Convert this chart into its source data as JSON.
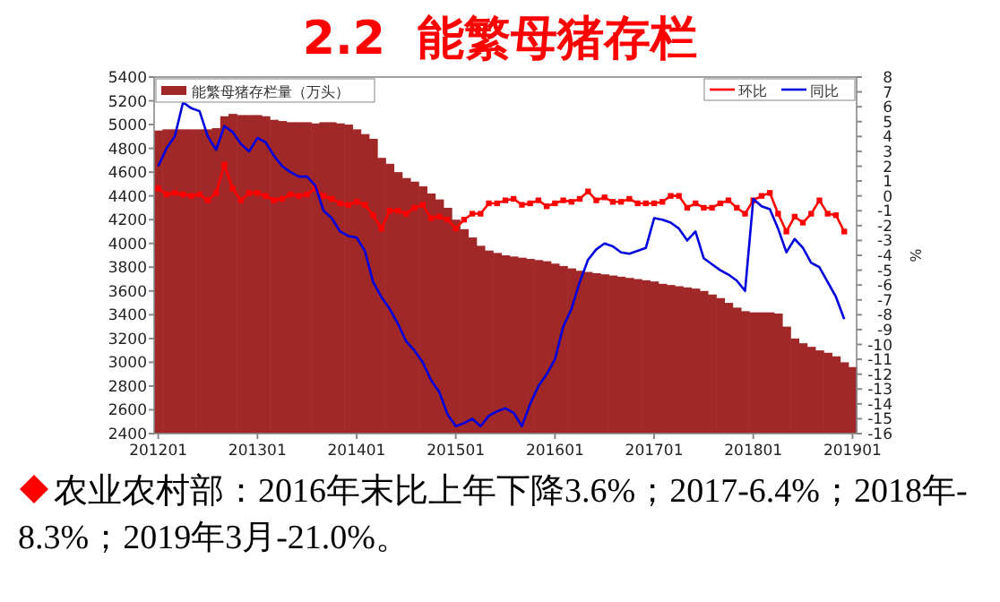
{
  "chart_data": {
    "type": "bar",
    "title": "2.2  能繁母猪存栏",
    "y2label": "%",
    "categories": [
      "201201",
      null,
      null,
      null,
      null,
      null,
      null,
      null,
      null,
      null,
      null,
      null,
      "201301",
      null,
      null,
      null,
      null,
      null,
      null,
      null,
      null,
      null,
      null,
      null,
      "201401",
      null,
      null,
      null,
      null,
      null,
      null,
      null,
      null,
      null,
      null,
      null,
      "201501",
      null,
      null,
      null,
      null,
      null,
      null,
      null,
      null,
      null,
      null,
      null,
      "201601",
      null,
      null,
      null,
      null,
      null,
      null,
      null,
      null,
      null,
      null,
      null,
      "201701",
      null,
      null,
      null,
      null,
      null,
      null,
      null,
      null,
      null,
      null,
      null,
      "201801",
      null,
      null,
      null,
      null,
      null,
      null,
      null,
      null,
      null,
      null,
      null,
      "201901"
    ],
    "series": [
      {
        "name": "能繁母猪存栏量（万头）",
        "color": "#a02828",
        "values": [
          4950,
          4960,
          4960,
          4960,
          4960,
          4960,
          4960,
          4970,
          5070,
          5090,
          5080,
          5080,
          5080,
          5070,
          5040,
          5030,
          5020,
          5020,
          5020,
          5010,
          5020,
          5020,
          5010,
          5000,
          4960,
          4920,
          4880,
          4720,
          4670,
          4600,
          4550,
          4520,
          4480,
          4420,
          4370,
          4300,
          4200,
          4120,
          4050,
          3980,
          3940,
          3920,
          3900,
          3890,
          3880,
          3870,
          3860,
          3850,
          3830,
          3810,
          3790,
          3770,
          3760,
          3750,
          3740,
          3730,
          3720,
          3710,
          3700,
          3690,
          3680,
          3660,
          3650,
          3640,
          3630,
          3620,
          3600,
          3570,
          3540,
          3500,
          3460,
          3430,
          3420,
          3420,
          3420,
          3410,
          3300,
          3200,
          3160,
          3130,
          3100,
          3080,
          3050,
          3000,
          2960
        ]
      },
      {
        "name": "环比",
        "type": "line",
        "axis": "y2",
        "color": "#ff0000",
        "marker": "square",
        "values": [
          0.5,
          0.1,
          0.2,
          0.1,
          0.0,
          0.1,
          -0.3,
          0.2,
          2.1,
          0.5,
          -0.3,
          0.2,
          0.2,
          0.0,
          -0.3,
          -0.2,
          0.1,
          0.0,
          0.1,
          0.5,
          0.0,
          -0.2,
          -0.5,
          -0.6,
          -0.4,
          -0.6,
          -1.3,
          -2.2,
          -1.0,
          -1.0,
          -1.2,
          -0.8,
          -0.6,
          -1.5,
          -1.4,
          -1.6,
          -2.2,
          -1.6,
          -1.2,
          -1.2,
          -0.5,
          -0.5,
          -0.3,
          -0.2,
          -0.6,
          -0.5,
          -0.3,
          -0.7,
          -0.5,
          -0.3,
          -0.4,
          -0.2,
          0.3,
          -0.3,
          -0.1,
          -0.4,
          -0.4,
          -0.2,
          -0.5,
          -0.5,
          -0.5,
          -0.4,
          0.0,
          0.0,
          -0.8,
          -0.5,
          -0.8,
          -0.8,
          -0.5,
          -0.3,
          -0.8,
          -1.2,
          -0.3,
          0.0,
          0.2,
          -1.2,
          -2.4,
          -1.4,
          -1.8,
          -1.2,
          -0.3,
          -1.2,
          -1.3,
          -2.4,
          null
        ]
      },
      {
        "name": "同比",
        "type": "line",
        "axis": "y2",
        "color": "#0000dd",
        "marker": "none",
        "values": [
          2.0,
          3.2,
          4.0,
          6.3,
          5.9,
          5.7,
          4.0,
          3.1,
          4.7,
          4.3,
          3.5,
          3.0,
          3.9,
          3.6,
          2.7,
          2.0,
          1.6,
          1.3,
          1.3,
          0.7,
          -1.0,
          -1.5,
          -2.4,
          -2.7,
          -2.8,
          -3.7,
          -5.8,
          -6.8,
          -7.6,
          -8.6,
          -9.8,
          -10.4,
          -11.2,
          -12.4,
          -13.2,
          -14.7,
          -15.5,
          -15.3,
          -15.0,
          -15.5,
          -14.8,
          -14.5,
          -14.3,
          -14.6,
          -15.5,
          -14.0,
          -12.8,
          -12.0,
          -11.0,
          -8.8,
          -7.6,
          -5.8,
          -4.3,
          -3.6,
          -3.2,
          -3.4,
          -3.8,
          -3.9,
          -3.7,
          -3.5,
          -1.5,
          -1.6,
          -1.8,
          -2.2,
          -3.0,
          -2.4,
          -4.2,
          -4.6,
          -5.0,
          -5.3,
          -5.7,
          -6.4,
          -0.2,
          -0.7,
          -0.9,
          -2.2,
          -3.8,
          -2.9,
          -3.5,
          -4.5,
          -4.8,
          -5.8,
          -6.8,
          -8.3,
          null
        ]
      }
    ],
    "ylim": [
      2400,
      5400
    ],
    "yticks": [
      2400,
      2600,
      2800,
      3000,
      3200,
      3400,
      3600,
      3800,
      4000,
      4200,
      4400,
      4600,
      4800,
      5000,
      5200,
      5400
    ],
    "y2lim": [
      -16,
      8
    ],
    "y2ticks": [
      -16,
      -15,
      -14,
      -13,
      -12,
      -11,
      -10,
      -9,
      -8,
      -7,
      -6,
      -5,
      -4,
      -3,
      -2,
      -1,
      0,
      1,
      2,
      3,
      4,
      5,
      6,
      7,
      8
    ],
    "legend": "top",
    "grid": false,
    "annotations": [
      "农业农村部：2016年末比上年下降3.6%；2017-6.4%；2018年-8.3%；2019年3月-21.0%。"
    ]
  }
}
